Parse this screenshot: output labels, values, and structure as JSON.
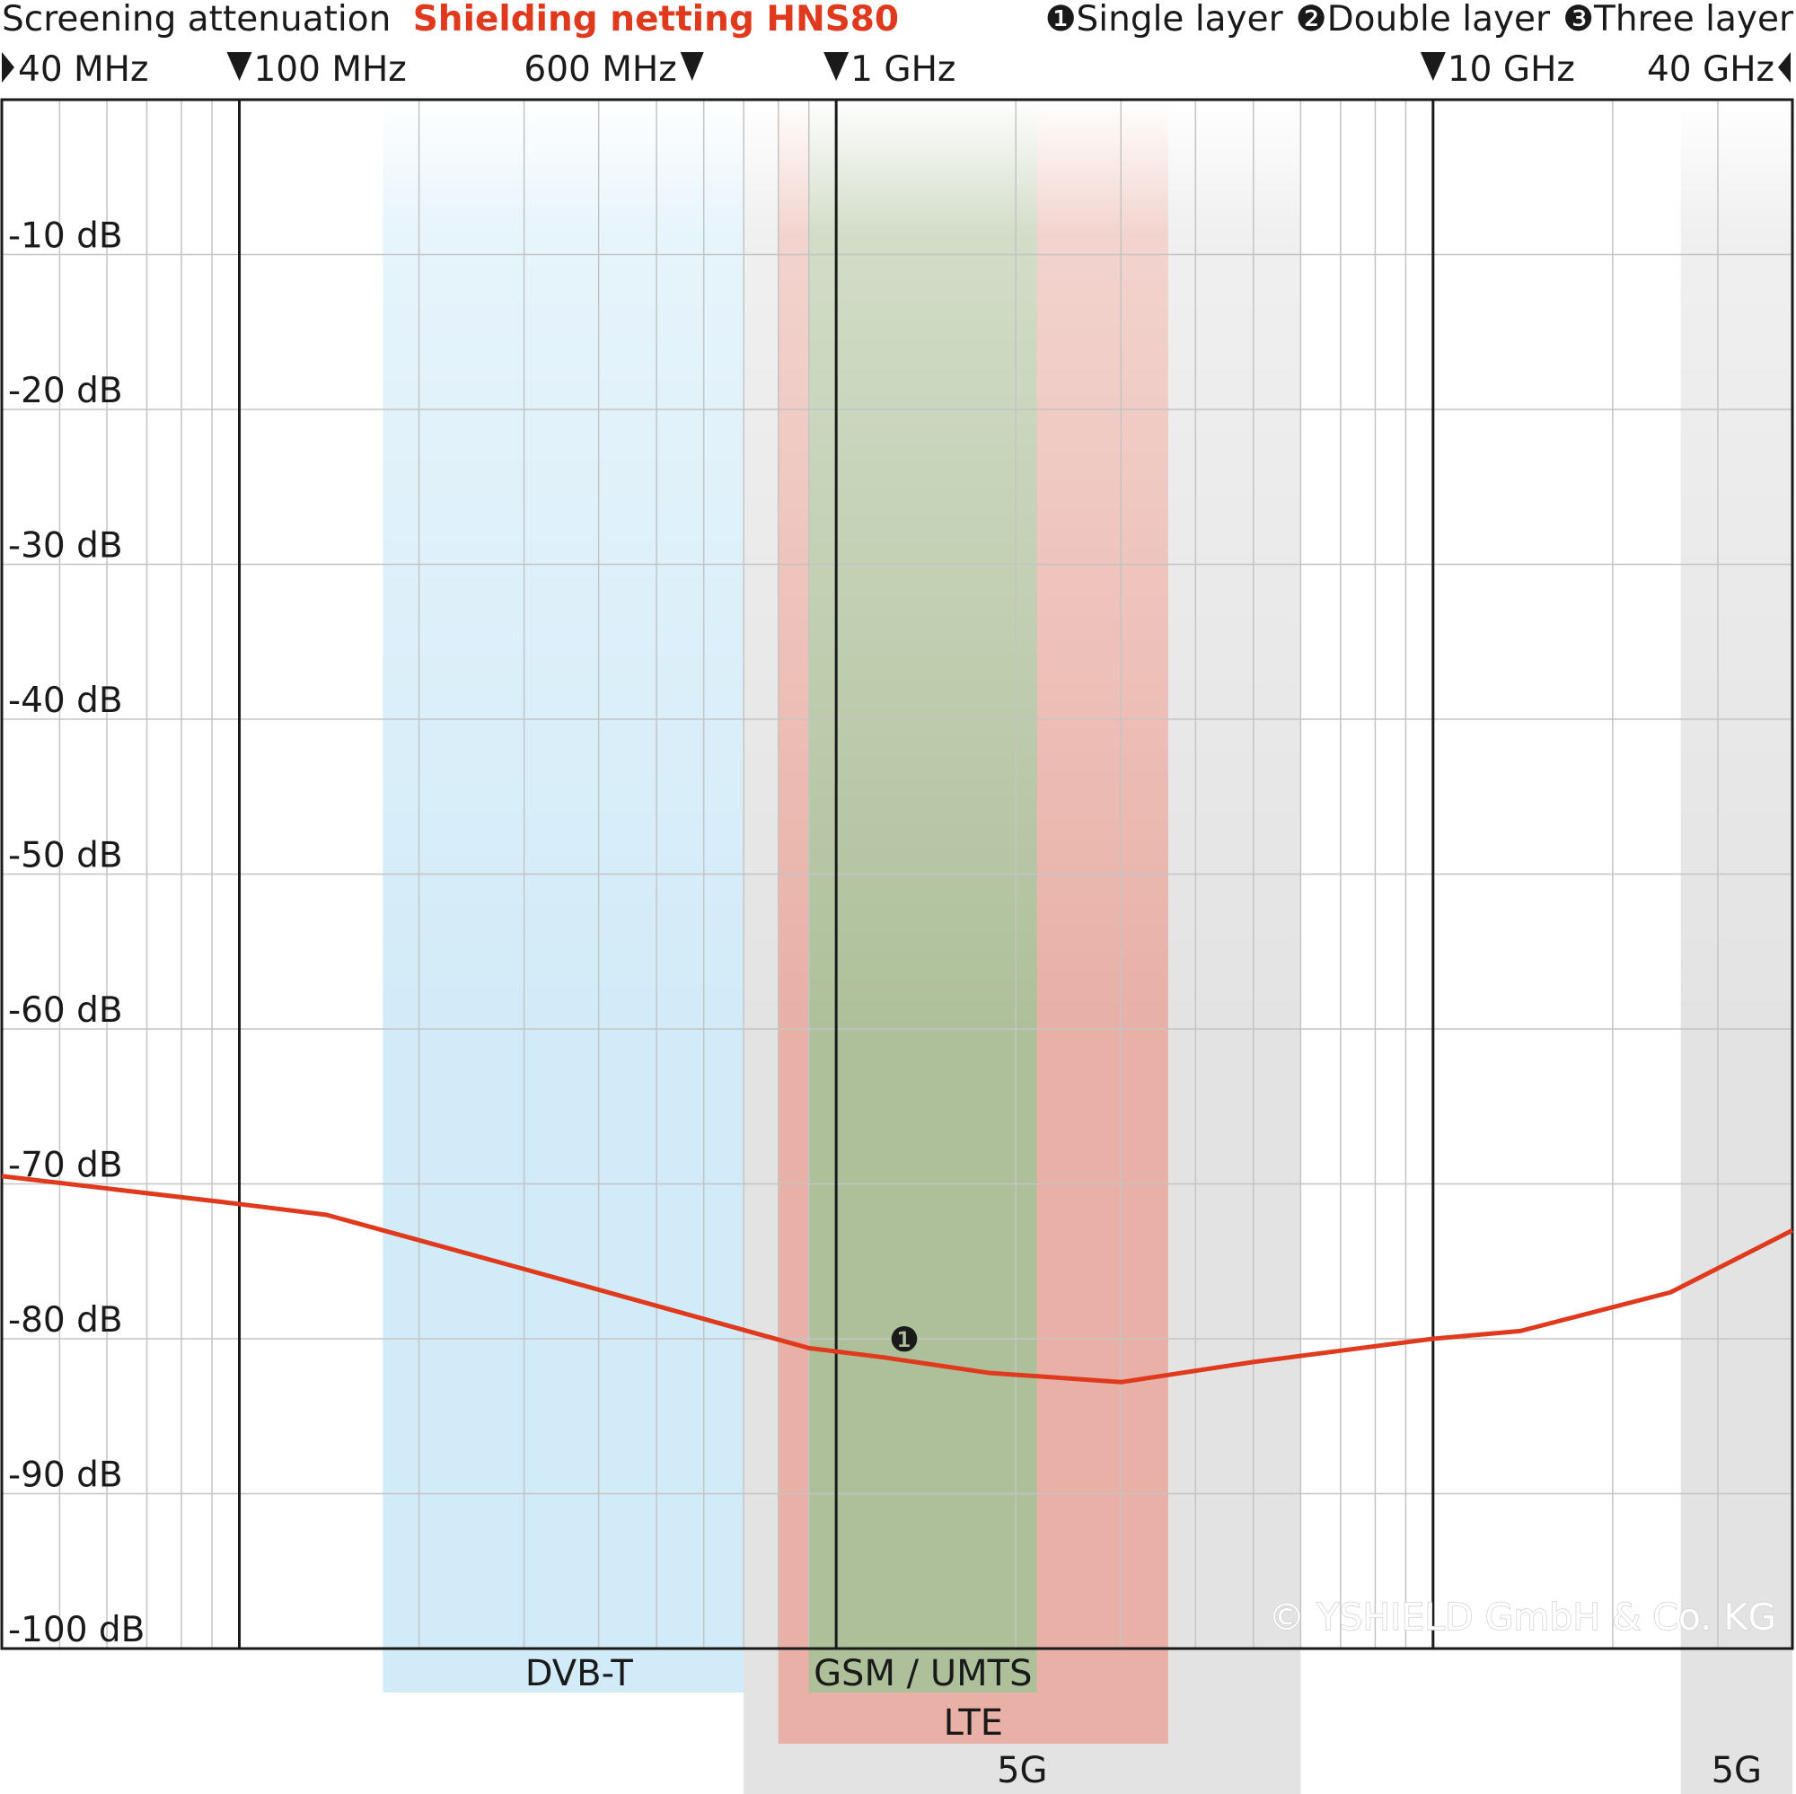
{
  "chart_data": {
    "type": "line",
    "title": "Screening attenuation",
    "subtitle": "Shielding netting HNS80",
    "x_scale": "log",
    "xlim_mhz": [
      40,
      40000
    ],
    "ylim": [
      -100,
      0
    ],
    "y_ticks": [
      {
        "value": -10,
        "label": "-10 dB"
      },
      {
        "value": -20,
        "label": "-20 dB"
      },
      {
        "value": -30,
        "label": "-30 dB"
      },
      {
        "value": -40,
        "label": "-40 dB"
      },
      {
        "value": -50,
        "label": "-50 dB"
      },
      {
        "value": -60,
        "label": "-60 dB"
      },
      {
        "value": -70,
        "label": "-70 dB"
      },
      {
        "value": -80,
        "label": "-80 dB"
      },
      {
        "value": -90,
        "label": "-90 dB"
      },
      {
        "value": -100,
        "label": "-100 dB"
      }
    ],
    "x_markers": [
      {
        "mhz": 40,
        "label": "40 MHz",
        "marker": "right",
        "side": "right",
        "major": false
      },
      {
        "mhz": 100,
        "label": "100 MHz",
        "marker": "down",
        "side": "right",
        "major": true
      },
      {
        "mhz": 600,
        "label": "600 MHz",
        "marker": "down",
        "side": "left",
        "major": false
      },
      {
        "mhz": 1000,
        "label": "1 GHz",
        "marker": "down",
        "side": "right",
        "major": true
      },
      {
        "mhz": 10000,
        "label": "10 GHz",
        "marker": "down",
        "side": "right",
        "major": true
      },
      {
        "mhz": 40000,
        "label": "40 GHz",
        "marker": "left",
        "side": "left",
        "major": false
      }
    ],
    "legend": [
      {
        "symbol": "❶",
        "label": "Single layer"
      },
      {
        "symbol": "❷",
        "label": "Double layer"
      },
      {
        "symbol": "❸",
        "label": "Three layer"
      }
    ],
    "series": [
      {
        "marker_label": "❶",
        "color": "#e03a1e",
        "x_mhz": [
          40,
          100,
          140,
          300,
          900,
          1200,
          1800,
          3000,
          5000,
          10000,
          14000,
          25000,
          40000
        ],
        "y": [
          -69.5,
          -71.3,
          -72,
          -75.5,
          -80.6,
          -81.2,
          -82.2,
          -82.8,
          -81.5,
          -80,
          -79.5,
          -77,
          -73
        ]
      }
    ],
    "bands": [
      {
        "label": "DVB-T",
        "from_mhz": 174,
        "to_mhz": 790,
        "color": "#d2ebf8",
        "row": 1
      },
      {
        "label": "5G",
        "from_mhz": 700,
        "to_mhz": 6000,
        "color": "#e3e3e3",
        "row": 3
      },
      {
        "label": "LTE",
        "from_mhz": 800,
        "to_mhz": 3600,
        "color": "#e8b0a6",
        "row": 2
      },
      {
        "label": "GSM / UMTS",
        "from_mhz": 900,
        "to_mhz": 2170,
        "color": "#aec09a",
        "row": 1
      },
      {
        "label": "5G",
        "from_mhz": 26000,
        "to_mhz": 40000,
        "color": "#e3e3e3",
        "row": 3
      }
    ],
    "watermark": "© YSHIELD GmbH & Co. KG",
    "colors": {
      "accent": "#e03a1e",
      "axis": "#1a1a1a",
      "grid": "#c4c4c4"
    }
  }
}
